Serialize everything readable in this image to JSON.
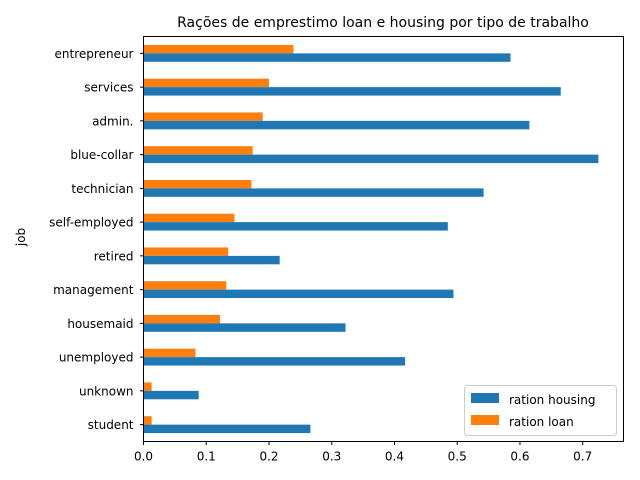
{
  "chart_data": {
    "type": "bar",
    "orientation": "horizontal",
    "title": "Rações de emprestimo loan e housing por tipo de trabalho",
    "ylabel": "job",
    "xlabel": "",
    "categories": [
      "entrepreneur",
      "services",
      "admin.",
      "blue-collar",
      "technician",
      "self-employed",
      "retired",
      "management",
      "housemaid",
      "unemployed",
      "unknown",
      "student"
    ],
    "series": [
      {
        "name": "ration housing",
        "color": "#1f77b4",
        "values": [
          0.585,
          0.665,
          0.615,
          0.725,
          0.542,
          0.485,
          0.217,
          0.494,
          0.322,
          0.417,
          0.088,
          0.266
        ]
      },
      {
        "name": "ration loan",
        "color": "#ff7f0e",
        "values": [
          0.239,
          0.2,
          0.19,
          0.174,
          0.172,
          0.145,
          0.135,
          0.132,
          0.122,
          0.083,
          0.013,
          0.013
        ]
      }
    ],
    "xlim": [
      0,
      0.765
    ],
    "xticks": [
      "0.0",
      "0.1",
      "0.2",
      "0.3",
      "0.4",
      "0.5",
      "0.6",
      "0.7"
    ],
    "legend_position": "lower-right",
    "grid": false
  }
}
